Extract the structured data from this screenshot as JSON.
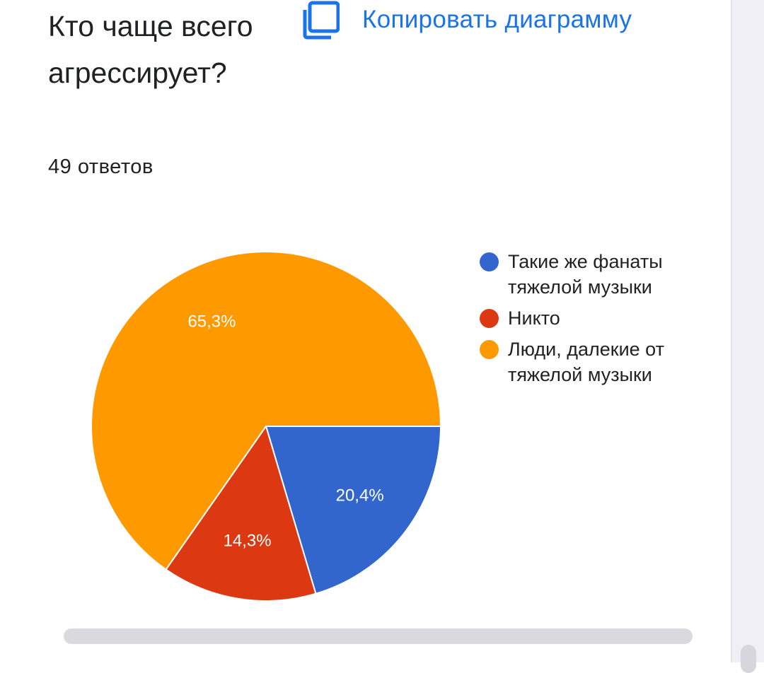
{
  "question": {
    "title": "Кто чаще всего агрессирует?",
    "responses": "49 ответов"
  },
  "toolbar": {
    "copy_label": "Копировать диаграмму",
    "copy_icon": "copy-icon"
  },
  "colors": {
    "accent": "#1a73e8"
  },
  "chart_data": {
    "type": "pie",
    "title": "",
    "slices": [
      {
        "label": "Такие же фанаты тяжелой музыки",
        "value": 20.4,
        "display": "20,4%",
        "color": "#3366cc"
      },
      {
        "label": "Никто",
        "value": 14.3,
        "display": "14,3%",
        "color": "#dc3912"
      },
      {
        "label": "Люди, далекие от тяжелой музыки",
        "value": 65.3,
        "display": "65,3%",
        "color": "#ff9900"
      }
    ],
    "legend_position": "right"
  }
}
